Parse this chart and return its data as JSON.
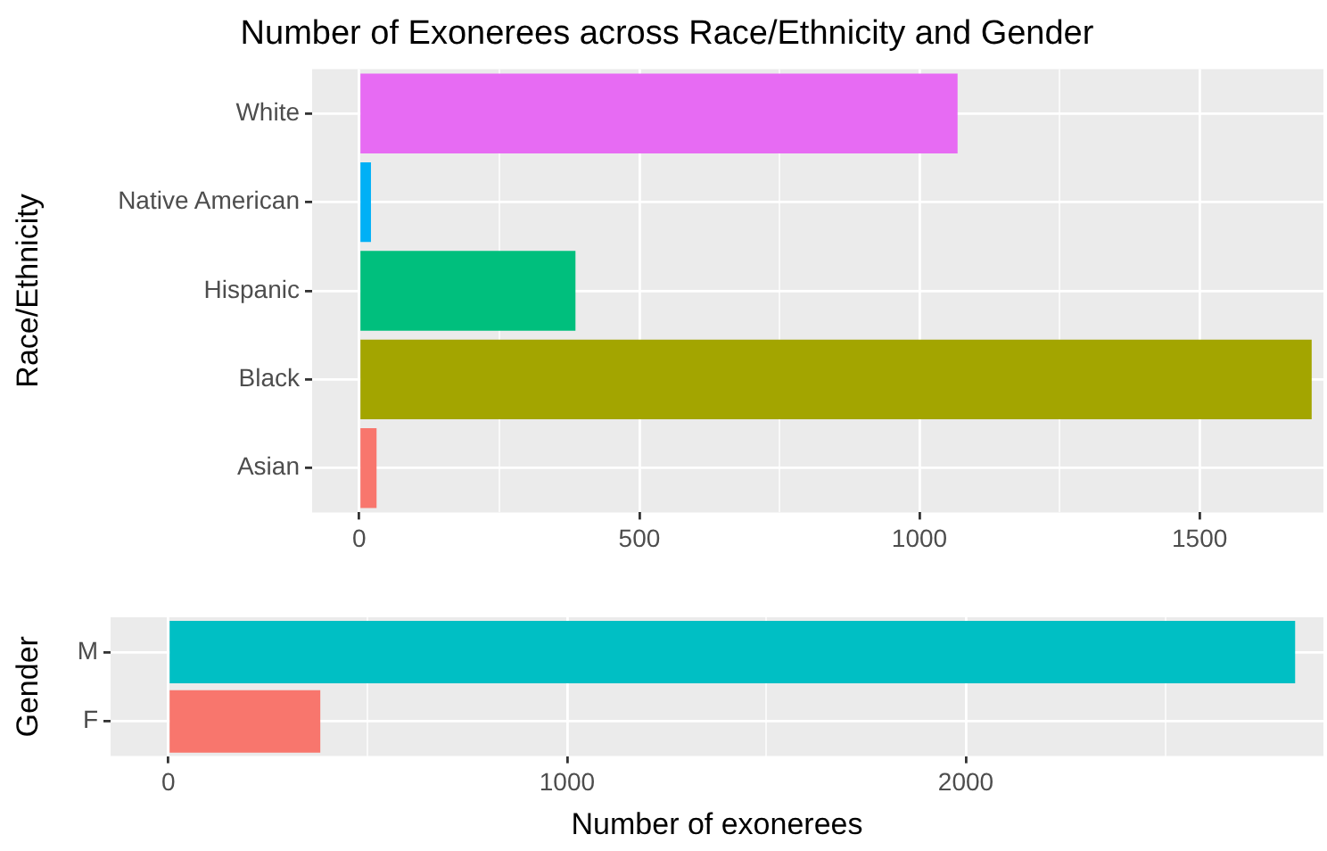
{
  "chart_data": [
    {
      "type": "bar",
      "orientation": "horizontal",
      "title": "Number of Exonerees across Race/Ethnicity and Gender",
      "ylabel": "Race/Ethnicity",
      "categories": [
        "White",
        "Native American",
        "Hispanic",
        "Black",
        "Asian"
      ],
      "values": [
        1068,
        21,
        386,
        1700,
        31
      ],
      "colors": [
        "#e76bf3",
        "#00b0f6",
        "#00bf7d",
        "#a3a500",
        "#f8766d"
      ],
      "xlim": [
        -84,
        1721
      ],
      "xticks": [
        0,
        {
          "value": 250,
          "label": null
        },
        500,
        {
          "value": 750,
          "label": null
        },
        1000,
        {
          "value": 1250,
          "label": null
        },
        1500
      ],
      "grid": true,
      "legend": false
    },
    {
      "type": "bar",
      "orientation": "horizontal",
      "xlabel": "Number of exonerees",
      "ylabel": "Gender",
      "categories": [
        "M",
        "F"
      ],
      "values": [
        2826,
        381
      ],
      "colors": [
        "#00bfc4",
        "#f8766d"
      ],
      "xlim": [
        -145,
        2897
      ],
      "xticks": [
        0,
        {
          "value": 500,
          "label": null
        },
        1000,
        {
          "value": 1500,
          "label": null
        },
        2000,
        {
          "value": 2500,
          "label": null
        }
      ],
      "grid": true,
      "legend": false
    }
  ]
}
